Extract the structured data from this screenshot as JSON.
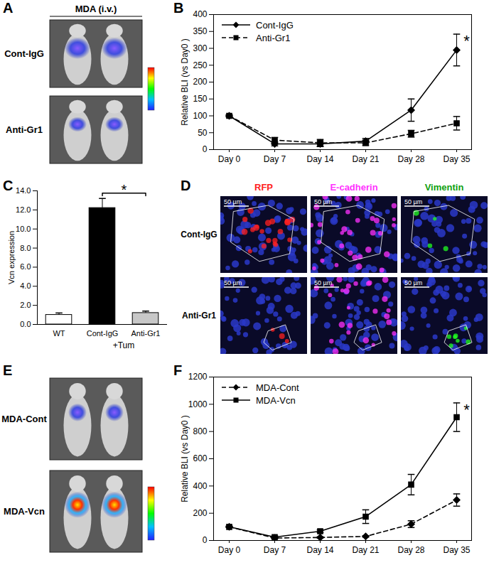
{
  "chart_data": [
    {
      "panel": "B",
      "type": "line",
      "categories": [
        "Day 0",
        "Day 7",
        "Day 14",
        "Day 21",
        "Day 28",
        "Day 35"
      ],
      "ylabel": "Relative BLI (vs Day0 )",
      "ylim": [
        0,
        400
      ],
      "yticks": [
        0,
        50,
        100,
        150,
        200,
        250,
        300,
        350,
        400
      ],
      "legend": "top-left",
      "annotation": {
        "text": "*",
        "series": "Cont-IgG"
      },
      "series": [
        {
          "name": "Cont-IgG",
          "color": "#000000",
          "marker": "diamond",
          "line_style": "solid",
          "values": [
            100,
            17,
            17,
            25,
            117,
            295
          ],
          "errors": [
            3,
            6,
            8,
            8,
            33,
            47
          ]
        },
        {
          "name": "Anti-Gr1",
          "color": "#000000",
          "marker": "square",
          "line_style": "dashed",
          "values": [
            100,
            28,
            20,
            20,
            47,
            78
          ],
          "errors": [
            3,
            8,
            10,
            8,
            10,
            20
          ]
        }
      ]
    },
    {
      "panel": "C",
      "type": "bar",
      "categories": [
        "WT",
        "Cont-IgG",
        "Anti-Gr1"
      ],
      "group_label": "+Tum",
      "values": [
        1.0,
        12.2,
        1.2
      ],
      "errors": [
        0.2,
        1.0,
        0.2
      ],
      "colors": [
        "#ffffff",
        "#000000",
        "#c8c8c8"
      ],
      "ylabel": "Vcn expression",
      "ylim": [
        0,
        14
      ],
      "yticks": [
        {
          "value": 0,
          "label": "0.0"
        },
        {
          "value": 2,
          "label": "2.0"
        },
        {
          "value": 4,
          "label": "4.0"
        },
        {
          "value": 6,
          "label": "6.0"
        },
        {
          "value": 8,
          "label": "8.0"
        },
        {
          "value": 10,
          "label": "10.0"
        },
        {
          "value": 12,
          "label": "12.0"
        },
        {
          "value": 14,
          "label": "14.0"
        }
      ],
      "annotation": {
        "text": "*"
      }
    },
    {
      "panel": "F",
      "type": "line",
      "categories": [
        "Day 0",
        "Day 7",
        "Day 14",
        "Day 21",
        "Day 28",
        "Day 35"
      ],
      "ylabel": "Relative BLI (vs Day0 )",
      "ylim": [
        0,
        1200
      ],
      "yticks": [
        0,
        200,
        400,
        600,
        800,
        1000,
        1200
      ],
      "legend": "top-left",
      "annotation": {
        "text": "*",
        "series": "MDA-Vcn"
      },
      "series": [
        {
          "name": "MDA-Cont",
          "color": "#000000",
          "marker": "diamond",
          "line_style": "dashed",
          "values": [
            100,
            18,
            22,
            30,
            120,
            297
          ],
          "errors": [
            5,
            5,
            5,
            5,
            25,
            45
          ]
        },
        {
          "name": "MDA-Vcn",
          "color": "#000000",
          "marker": "square",
          "line_style": "solid",
          "values": [
            100,
            25,
            68,
            175,
            410,
            905
          ],
          "errors": [
            5,
            8,
            10,
            50,
            75,
            105
          ]
        }
      ]
    }
  ],
  "image_panels": [
    {
      "panel": "A",
      "header": "MDA (i.v.)",
      "rows": [
        "Cont-IgG",
        "Anti-Gr1"
      ]
    },
    {
      "panel": "D",
      "columns": [
        "RFP",
        "E-cadherin",
        "Vimentin"
      ],
      "column_colors": [
        "#ff2020",
        "#ff30ff",
        "#20ff20"
      ],
      "rows": [
        "Cont-IgG",
        "Anti-Gr1"
      ],
      "scale_bar": "50 µm"
    },
    {
      "panel": "E",
      "rows": [
        "MDA-Cont",
        "MDA-Vcn"
      ]
    }
  ]
}
